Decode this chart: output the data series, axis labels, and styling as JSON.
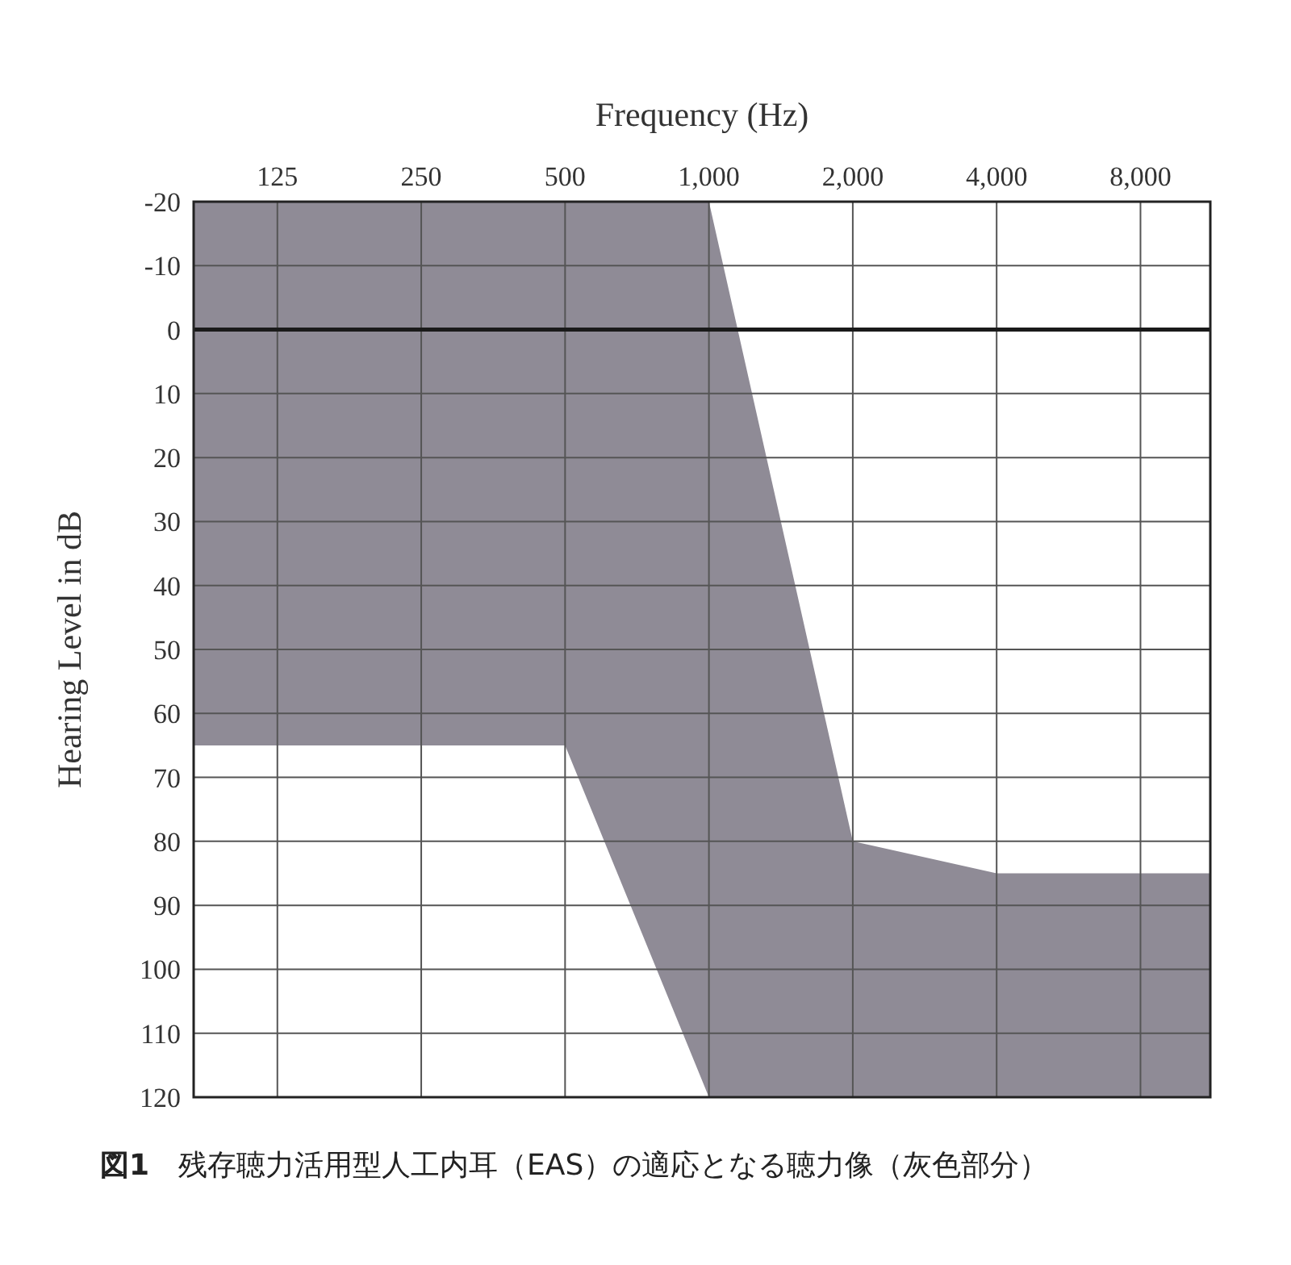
{
  "chart_data": {
    "type": "area",
    "xlabel": "Frequency (Hz)",
    "ylabel": "Hearing Level in dB",
    "log": "x",
    "xlim": [
      83.5,
      11200
    ],
    "xticks": [
      125,
      250,
      500,
      {
        "value": 1000,
        "label": "1,000"
      },
      {
        "value": 2000,
        "label": "2,000"
      },
      {
        "value": 4000,
        "label": "4,000"
      },
      {
        "value": 8000,
        "label": "8,000"
      }
    ],
    "ylim": [
      120,
      -20
    ],
    "yticks": [
      -20,
      -10,
      0,
      10,
      20,
      30,
      40,
      50,
      60,
      70,
      80,
      90,
      100,
      110,
      120
    ],
    "grid": true,
    "series": [
      {
        "color": "#8f8b96",
        "x": [
          83.5,
          83.5,
          500,
          1000,
          2000,
          4000,
          11200,
          11200
        ],
        "values": [
          120,
          -20,
          -20,
          -20,
          80,
          85,
          85,
          120
        ]
      },
      {
        "color": "#ffffff",
        "x": [
          83.5,
          83.5,
          500,
          1000,
          2000,
          4000,
          11200
        ],
        "values": [
          120,
          65,
          65,
          120,
          120,
          120,
          120
        ]
      }
    ],
    "ref_lines": [
      {
        "axis": "y",
        "value": 0,
        "color": "#1a1a1a"
      }
    ],
    "annotations": [
      "**図1**　残存聴力活用型人工内耳（EAS）の適応となる聴力像（灰色部分）"
    ]
  }
}
